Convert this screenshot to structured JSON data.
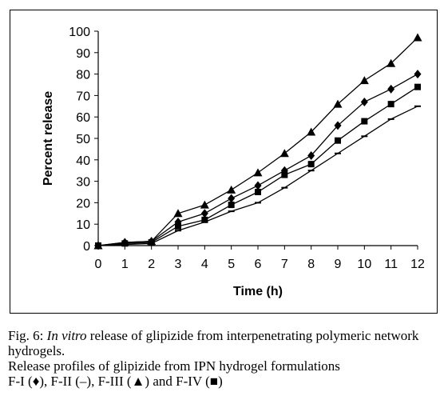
{
  "chart_data": {
    "type": "line",
    "xlabel": "Time (h)",
    "ylabel": "Percent release",
    "xlim": [
      0,
      12
    ],
    "ylim": [
      0,
      100
    ],
    "xticks": [
      0,
      1,
      2,
      3,
      4,
      5,
      6,
      7,
      8,
      9,
      10,
      11,
      12
    ],
    "yticks": [
      0,
      10,
      20,
      30,
      40,
      50,
      60,
      70,
      80,
      90,
      100
    ],
    "grid": false,
    "x": [
      0,
      1,
      2,
      3,
      4,
      5,
      6,
      7,
      8,
      9,
      10,
      11,
      12
    ],
    "series": [
      {
        "name": "F-I",
        "marker": "diamond",
        "values": [
          0,
          1.5,
          2,
          11,
          15,
          22,
          28,
          35,
          42,
          56,
          67,
          73,
          80
        ]
      },
      {
        "name": "F-II",
        "marker": "dash",
        "values": [
          0,
          0.5,
          1,
          7,
          11,
          16,
          20,
          27,
          35,
          43,
          51,
          59,
          65
        ]
      },
      {
        "name": "F-III",
        "marker": "triangle",
        "values": [
          0,
          1.5,
          2,
          15,
          19,
          26,
          34,
          43,
          53,
          66,
          77,
          85,
          97
        ]
      },
      {
        "name": "F-IV",
        "marker": "square",
        "values": [
          0,
          1,
          1.5,
          9,
          12,
          19,
          25,
          33,
          38,
          49,
          58,
          66,
          74
        ]
      }
    ]
  },
  "caption": {
    "fig_label": "Fig. 6: ",
    "title_italic": "In vitro",
    "title_rest": " release of glipizide from interpenetrating polymeric network hydrogels.",
    "line2": "Release profiles of glipizide from IPN hydrogel formulations",
    "legend_f1": "F-I (",
    "legend_f1_mark": "♦",
    "legend_f2": "), F-II (",
    "legend_f2_mark": "–",
    "legend_f3": "), F-III (",
    "legend_f3_mark": "▲",
    "legend_f4": ") and F-IV (",
    "legend_f4_mark": "■",
    "legend_end": ")"
  }
}
